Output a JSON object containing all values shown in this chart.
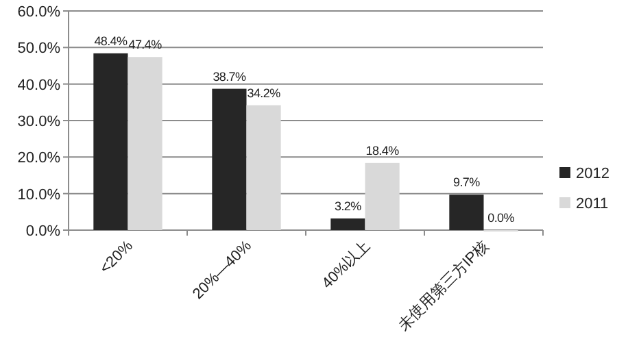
{
  "chart_data": {
    "type": "bar",
    "categories": [
      "<20%",
      "20%—40%",
      "40%以上",
      "未使用第三方IP核"
    ],
    "series": [
      {
        "name": "2012",
        "color": "#262626",
        "values": [
          48.4,
          38.7,
          3.2,
          9.7
        ],
        "value_labels": [
          "48.4%",
          "38.7%",
          "3.2%",
          "9.7%"
        ]
      },
      {
        "name": "2011",
        "color": "#d9d9d9",
        "values": [
          47.4,
          34.2,
          18.4,
          0.0
        ],
        "value_labels": [
          "47.4%",
          "34.2%",
          "18.4%",
          "0.0%"
        ]
      }
    ],
    "ylim": [
      0,
      60
    ],
    "yticks": [
      {
        "value": 0,
        "label": "0.0%"
      },
      {
        "value": 10,
        "label": "10.0%"
      },
      {
        "value": 20,
        "label": "20.0%"
      },
      {
        "value": 30,
        "label": "30.0%"
      },
      {
        "value": 40,
        "label": "40.0%"
      },
      {
        "value": 50,
        "label": "50.0%"
      },
      {
        "value": 60,
        "label": "60.0%"
      }
    ],
    "grid": "y",
    "legend": "right"
  }
}
